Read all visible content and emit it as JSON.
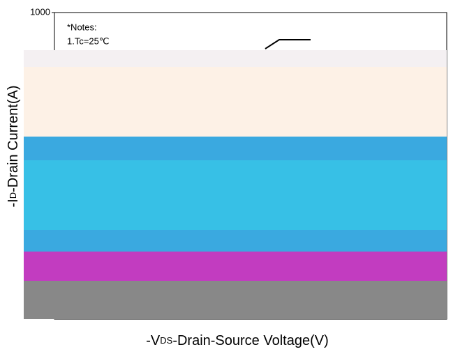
{
  "chart_data": {
    "type": "line",
    "ylog": true,
    "yticks": [
      1000
    ],
    "annotations": [
      "*Notes:",
      "1.Tc=25℃"
    ],
    "ylabel": [
      "-I",
      "D",
      "-Drain Current(A)"
    ],
    "xlabel": [
      "-V",
      "DS",
      "-Drain-Source Voltage(V)"
    ]
  }
}
